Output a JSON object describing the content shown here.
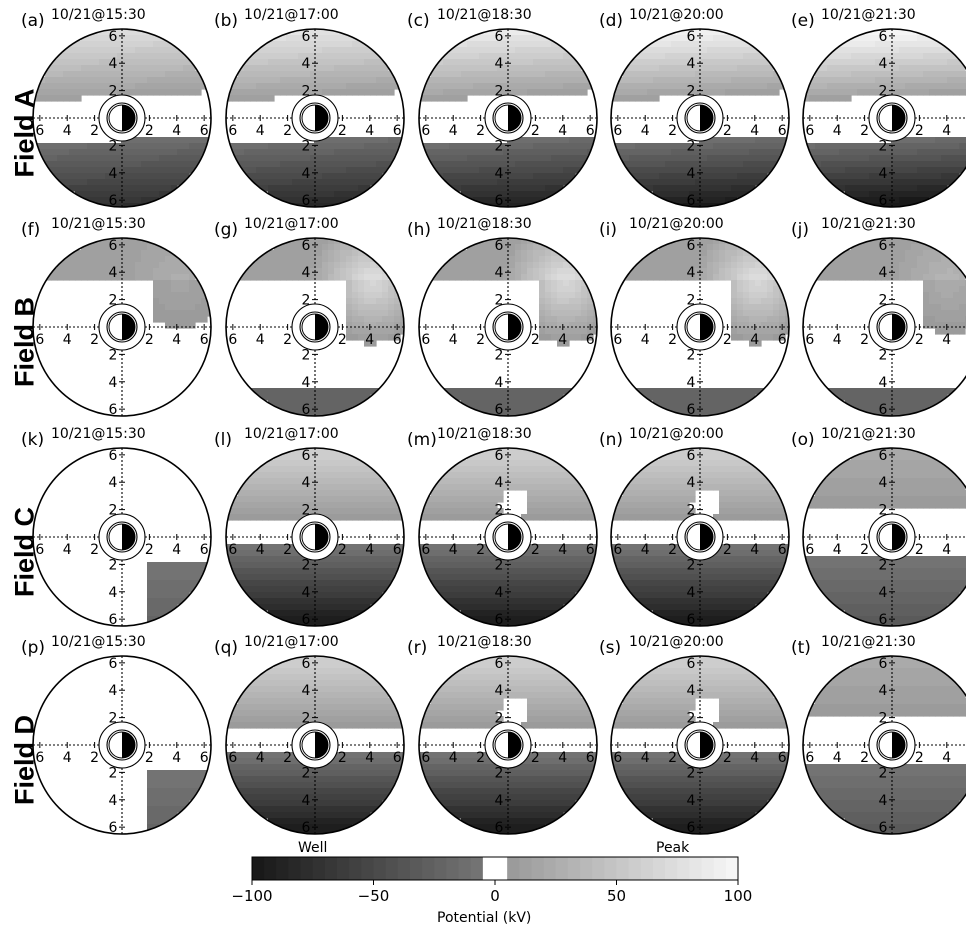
{
  "colors": {
    "ink": "#000000",
    "background": "#ffffff",
    "negative_end": "#0a0a0a",
    "zero_band": "#ffffff",
    "positive_end": "#f2f2f2"
  },
  "chart_data": {
    "type": "heatmap",
    "title": "",
    "rows": [
      {
        "label": "Field A",
        "panels": [
          {
            "letter": "(a)",
            "time": "10/21@15:30"
          },
          {
            "letter": "(b)",
            "time": "10/21@17:00"
          },
          {
            "letter": "(c)",
            "time": "10/21@18:30"
          },
          {
            "letter": "(d)",
            "time": "10/21@20:00"
          },
          {
            "letter": "(e)",
            "time": "10/21@21:30"
          }
        ]
      },
      {
        "label": "Field B",
        "panels": [
          {
            "letter": "(f)",
            "time": "10/21@15:30"
          },
          {
            "letter": "(g)",
            "time": "10/21@17:00"
          },
          {
            "letter": "(h)",
            "time": "10/21@18:30"
          },
          {
            "letter": "(i)",
            "time": "10/21@20:00"
          },
          {
            "letter": "(j)",
            "time": "10/21@21:30"
          }
        ]
      },
      {
        "label": "Field C",
        "panels": [
          {
            "letter": "(k)",
            "time": "10/21@15:30"
          },
          {
            "letter": "(l)",
            "time": "10/21@17:00"
          },
          {
            "letter": "(m)",
            "time": "10/21@18:30"
          },
          {
            "letter": "(n)",
            "time": "10/21@20:00"
          },
          {
            "letter": "(o)",
            "time": "10/21@21:30"
          }
        ]
      },
      {
        "label": "Field D",
        "panels": [
          {
            "letter": "(p)",
            "time": "10/21@15:30"
          },
          {
            "letter": "(q)",
            "time": "10/21@17:00"
          },
          {
            "letter": "(r)",
            "time": "10/21@18:30"
          },
          {
            "letter": "(s)",
            "time": "10/21@20:00"
          },
          {
            "letter": "(t)",
            "time": "10/21@21:30"
          }
        ]
      }
    ],
    "panel_axis": {
      "range": [
        -6.5,
        6.5
      ],
      "vertical_tick_labels": [
        "6",
        "4",
        "2",
        "2",
        "4",
        "6"
      ],
      "horizontal_tick_labels": [
        "6",
        "4",
        "2",
        "2",
        "4",
        "6"
      ],
      "inner_circle_radius": 1
    },
    "colorbar": {
      "label": "Potential (kV)",
      "range": [
        -100,
        100
      ],
      "ticks": [
        -100,
        -50,
        0,
        50,
        100
      ],
      "tick_labels": [
        "−100",
        "−50",
        "0",
        "50",
        "100"
      ],
      "left_annotation": "Well",
      "right_annotation": "Peak",
      "levels": 40,
      "zero_band": [
        -5,
        5
      ]
    },
    "grid": false,
    "legend": "bottom"
  }
}
